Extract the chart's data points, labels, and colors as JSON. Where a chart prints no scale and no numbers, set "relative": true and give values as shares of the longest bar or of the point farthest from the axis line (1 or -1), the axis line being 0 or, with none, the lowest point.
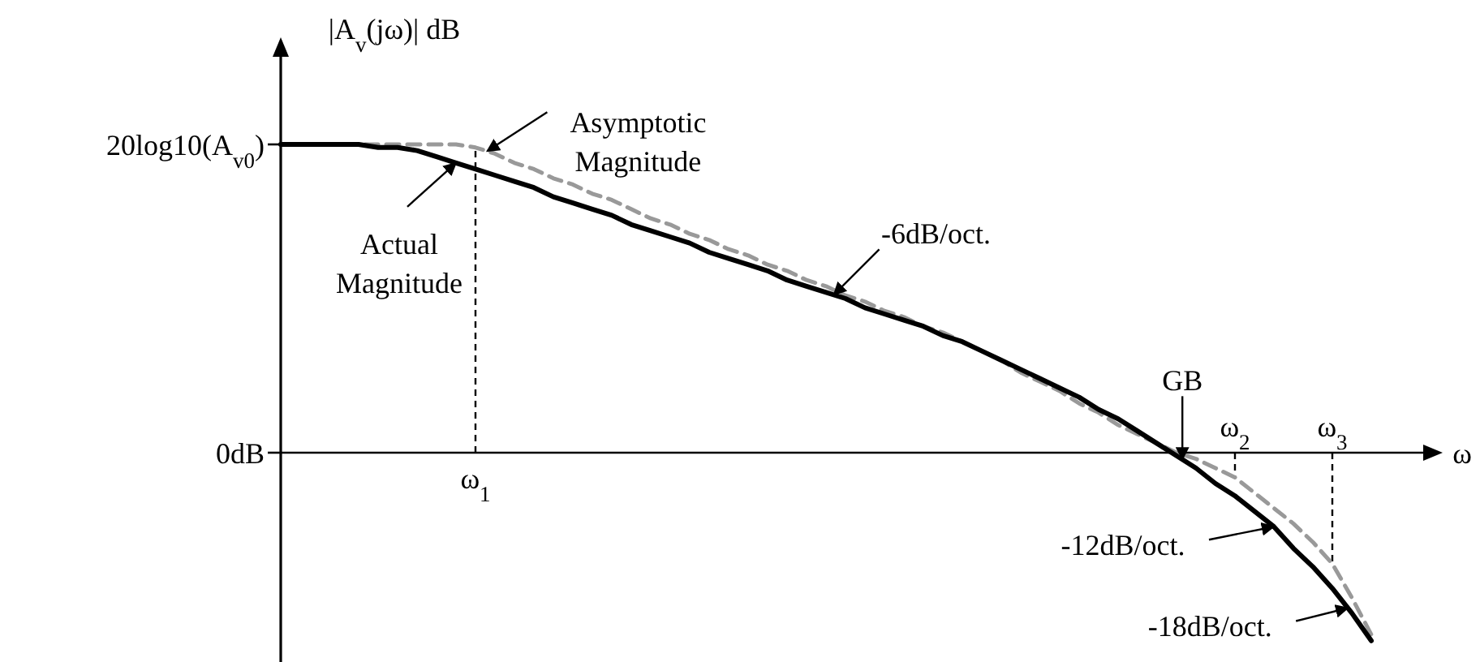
{
  "chart_data": {
    "type": "line",
    "relative": true,
    "ylabel": "|A$_{v}$(jω)| dB",
    "xlabel": "ω",
    "categories": [
      null,
      null,
      null,
      null,
      null,
      null,
      null,
      null,
      null,
      null,
      "ω$_{1}$",
      null,
      null,
      null,
      null,
      null,
      null,
      null,
      null,
      null,
      null,
      null,
      null,
      null,
      null,
      null,
      null,
      null,
      null,
      null,
      null,
      null,
      null,
      null,
      null,
      null,
      null,
      null,
      null,
      null,
      null,
      null,
      null,
      null,
      null,
      null,
      null,
      null,
      null,
      "ω$_{2}$",
      null,
      null,
      null,
      null,
      "ω$_{3}$",
      null,
      null,
      null,
      null
    ],
    "grid": false,
    "marker": "none",
    "series": [
      {
        "color": "#999999",
        "line_style": "dashed",
        "values": [
          1,
          1,
          1,
          1,
          1,
          1,
          1,
          1,
          1,
          1,
          0.99,
          0.97,
          0.94,
          0.92,
          0.89,
          0.87,
          0.84,
          0.82,
          0.79,
          0.76,
          0.74,
          0.71,
          0.69,
          0.66,
          0.64,
          0.61,
          0.59,
          0.56,
          0.54,
          0.51,
          0.49,
          0.46,
          0.44,
          0.41,
          0.39,
          0.36,
          0.33,
          0.3,
          0.26,
          0.23,
          0.2,
          0.16,
          0.13,
          0.09,
          0.06,
          0.03,
          0,
          -0.02,
          -0.05,
          -0.08,
          -0.13,
          -0.18,
          -0.23,
          -0.29,
          -0.36,
          -0.47,
          -0.59,
          null,
          null
        ]
      },
      {
        "color": "#000000",
        "line_style": "solid",
        "values": [
          1,
          1,
          1,
          1,
          1,
          0.99,
          0.99,
          0.98,
          0.96,
          0.94,
          0.92,
          0.9,
          0.88,
          0.86,
          0.83,
          0.81,
          0.79,
          0.77,
          0.74,
          0.72,
          0.7,
          0.68,
          0.65,
          0.63,
          0.61,
          0.59,
          0.56,
          0.54,
          0.52,
          0.5,
          0.47,
          0.45,
          0.43,
          0.41,
          0.38,
          0.36,
          0.33,
          0.3,
          0.27,
          0.24,
          0.21,
          0.18,
          0.14,
          0.11,
          0.07,
          0.03,
          -0.01,
          -0.05,
          -0.1,
          -0.14,
          -0.19,
          -0.24,
          -0.31,
          -0.37,
          -0.44,
          -0.52,
          -0.61,
          null,
          null
        ]
      }
    ],
    "annotations": [
      "20log10(A$_{v0}$)",
      "0dB",
      "Asymptotic Magnitude",
      "Actual Magnitude",
      "-6dB/oct.",
      "GB",
      "-12dB/oct.",
      "-18dB/oct."
    ]
  }
}
